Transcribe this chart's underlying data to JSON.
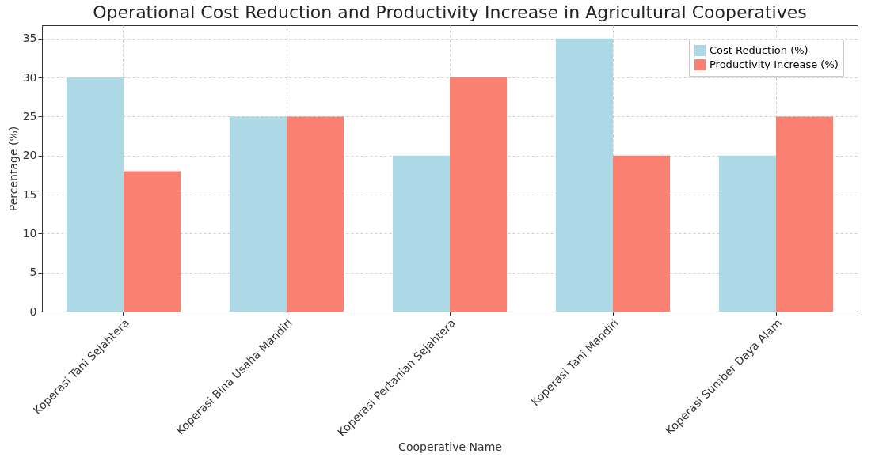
{
  "chart_data": {
    "type": "bar",
    "title": "Operational Cost Reduction and Productivity Increase in Agricultural Cooperatives",
    "xlabel": "Cooperative Name",
    "ylabel": "Percentage (%)",
    "categories": [
      "Koperasi Tani Sejahtera",
      "Koperasi Bina Usaha Mandiri",
      "Koperasi Pertanian Sejahtera",
      "Koperasi Tani Mandiri",
      "Koperasi Sumber Daya Alam"
    ],
    "series": [
      {
        "name": "Cost Reduction (%)",
        "color": "#add8e6",
        "values": [
          30,
          25,
          20,
          35,
          20
        ]
      },
      {
        "name": "Productivity Increase (%)",
        "color": "#fa8072",
        "values": [
          18,
          25,
          30,
          20,
          25
        ]
      }
    ],
    "ylim": [
      0,
      36.7
    ],
    "yticks": [
      0,
      5,
      10,
      15,
      20,
      25,
      30,
      35
    ],
    "grid": true,
    "legend": "top right"
  }
}
